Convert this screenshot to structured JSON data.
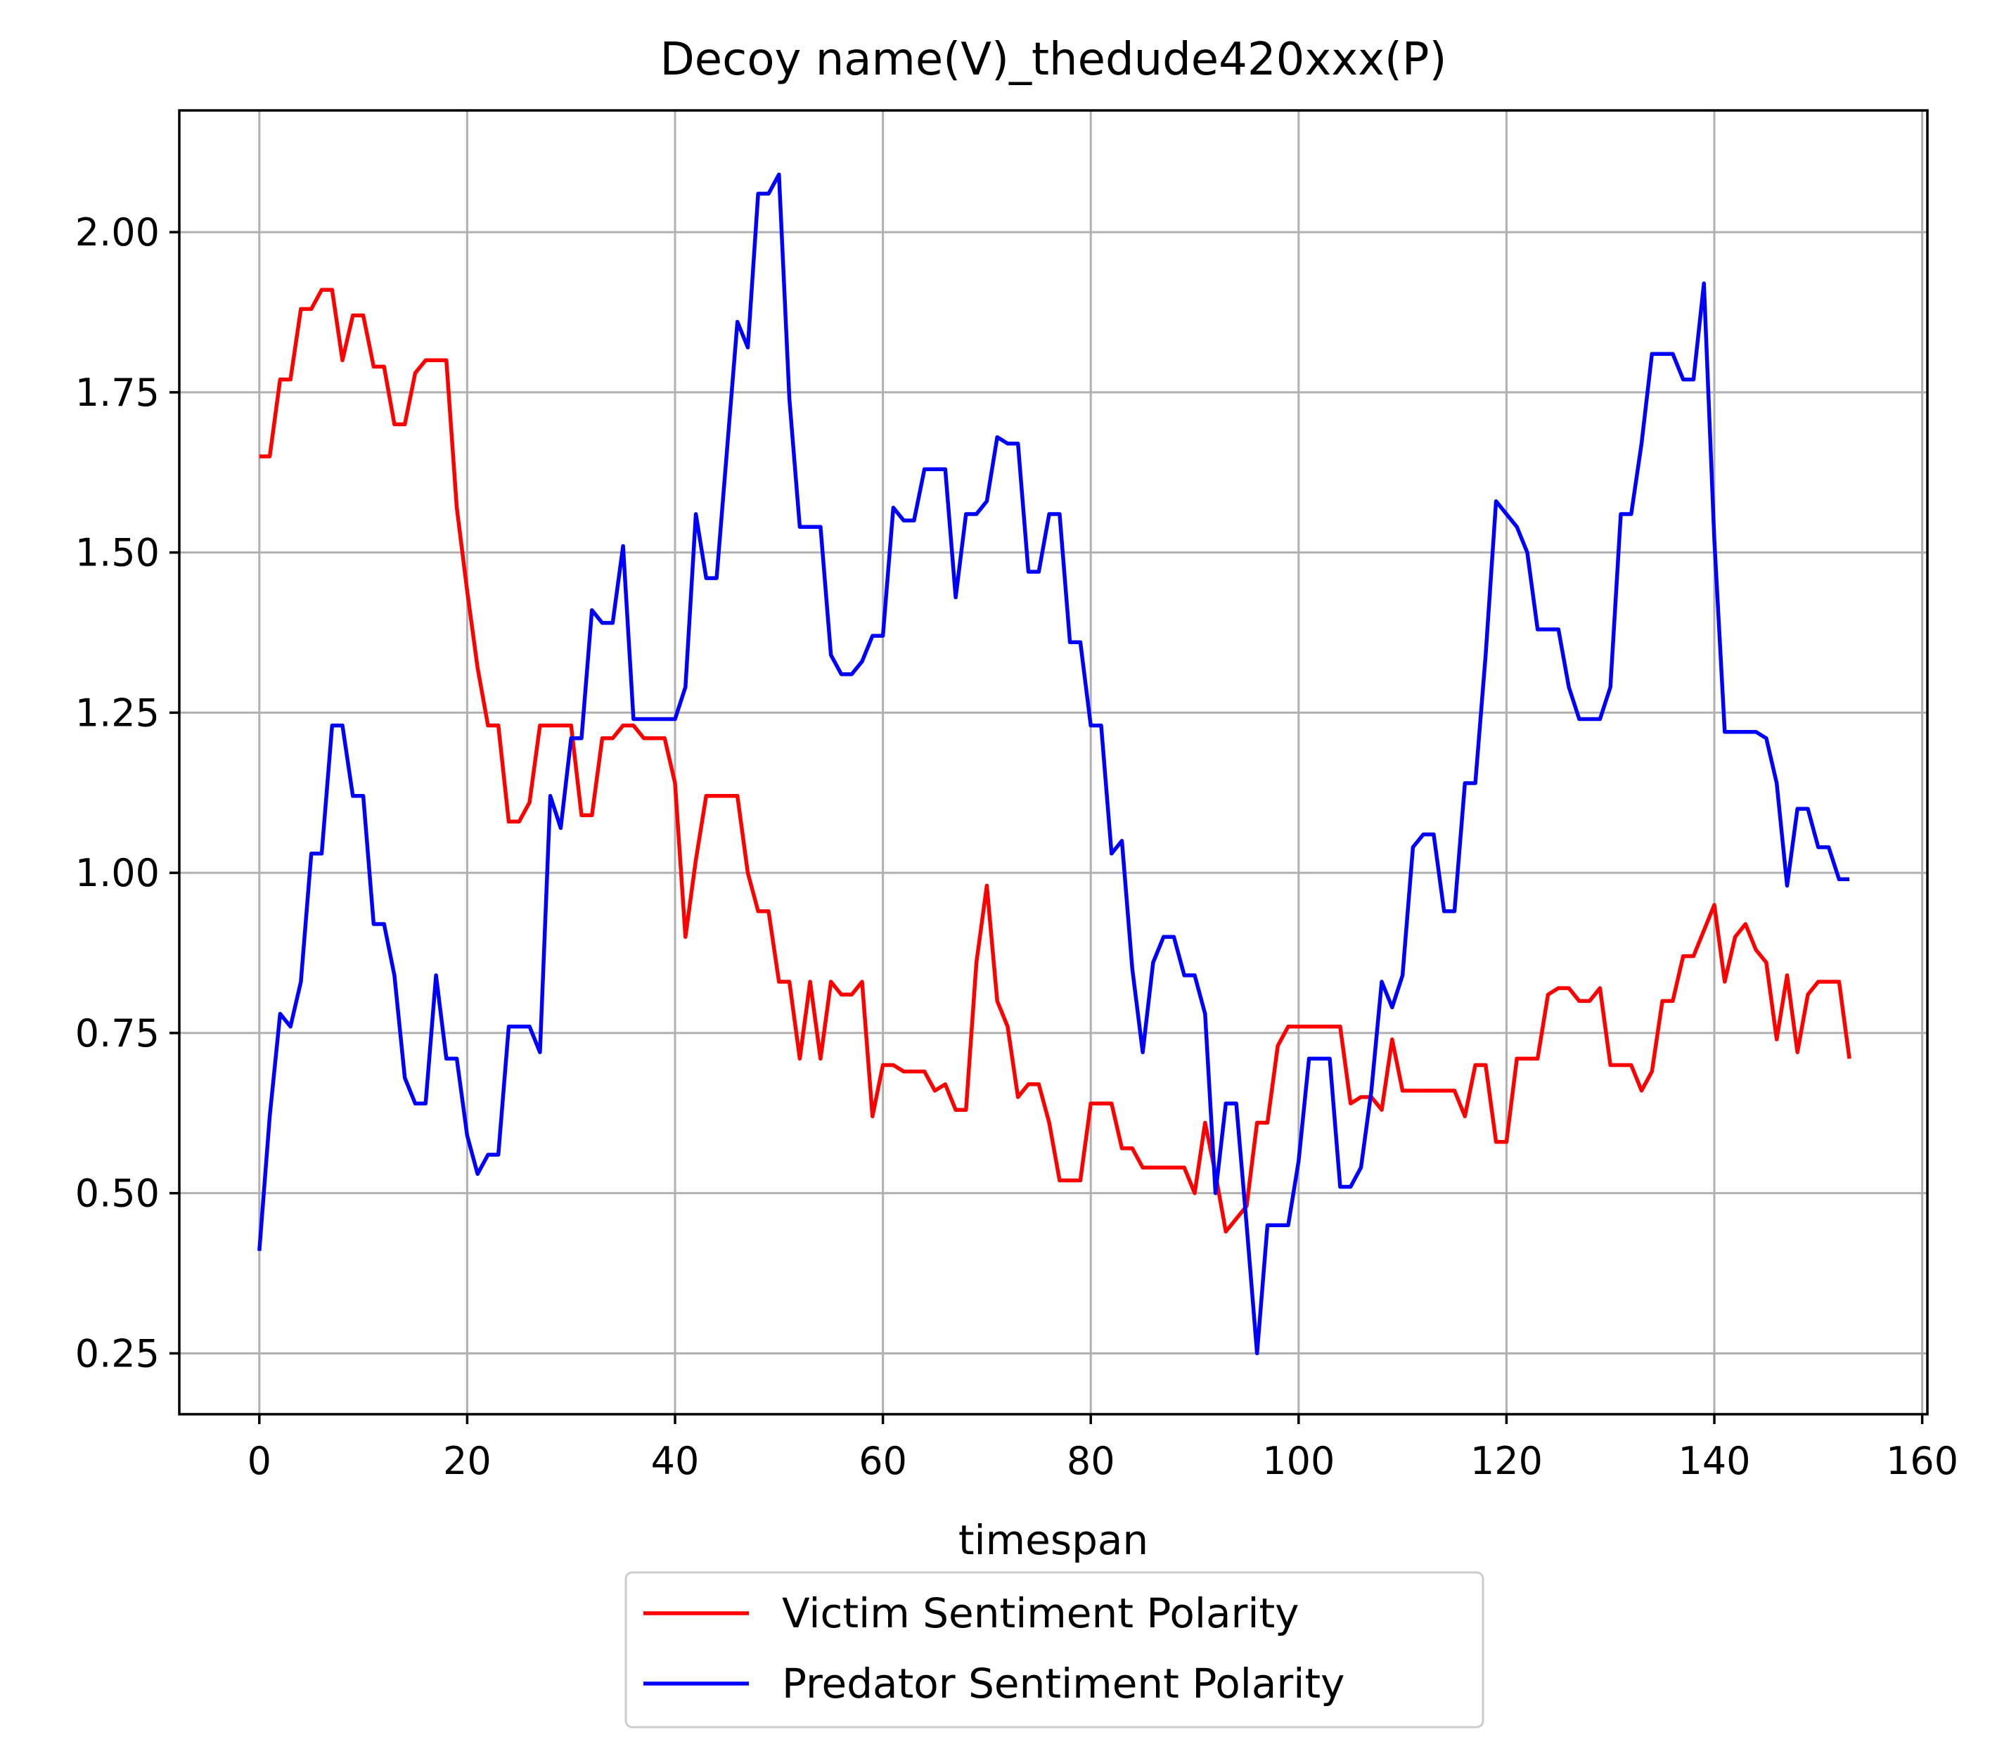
{
  "chart_data": {
    "type": "line",
    "title": "Decoy name(V)_thedude420xxx(P)",
    "xlabel": "timespan",
    "ylabel": "",
    "xlim": [
      -7.7,
      160.5
    ],
    "ylim": [
      0.155,
      2.19
    ],
    "xticks": [
      0,
      20,
      40,
      60,
      80,
      100,
      120,
      140,
      160
    ],
    "xtick_labels": [
      "0",
      "20",
      "40",
      "60",
      "80",
      "100",
      "120",
      "140",
      "160"
    ],
    "yticks": [
      0.25,
      0.5,
      0.75,
      1.0,
      1.25,
      1.5,
      1.75,
      2.0
    ],
    "ytick_labels": [
      "0.25",
      "0.50",
      "0.75",
      "1.00",
      "1.25",
      "1.50",
      "1.75",
      "2.00"
    ],
    "grid": true,
    "legend_position": "below",
    "series": [
      {
        "name": "Victim Sentiment Polarity",
        "color": "#ff0000",
        "x": [
          0,
          1,
          2,
          3,
          4,
          5,
          6,
          7,
          8,
          9,
          10,
          11,
          12,
          13,
          14,
          15,
          16,
          17,
          18,
          19,
          20,
          21,
          22,
          23,
          24,
          25,
          26,
          27,
          28,
          29,
          30,
          31,
          32,
          33,
          34,
          35,
          36,
          37,
          38,
          39,
          40,
          41,
          42,
          43,
          44,
          45,
          46,
          47,
          48,
          49,
          50,
          51,
          52,
          53,
          54,
          55,
          56,
          57,
          58,
          59,
          60,
          61,
          62,
          63,
          64,
          65,
          66,
          67,
          68,
          69,
          70,
          71,
          72,
          73,
          74,
          75,
          76,
          77,
          78,
          79,
          80,
          81,
          82,
          83,
          84,
          85,
          86,
          87,
          88,
          89,
          90,
          91,
          92,
          93,
          94,
          95,
          96,
          97,
          98,
          99,
          100,
          101,
          102,
          103,
          104,
          105,
          106,
          107,
          108,
          109,
          110,
          111,
          112,
          113,
          114,
          115,
          116,
          117,
          118,
          119,
          120,
          121,
          122,
          123,
          124,
          125,
          126,
          127,
          128,
          129,
          130,
          131,
          132,
          133,
          134,
          135,
          136,
          137,
          138,
          139,
          140,
          141,
          142,
          143,
          144,
          145,
          146,
          147,
          148,
          149,
          150,
          151,
          152,
          153
        ],
        "values": [
          1.65,
          1.65,
          1.77,
          1.77,
          1.88,
          1.88,
          1.91,
          1.91,
          1.8,
          1.87,
          1.87,
          1.79,
          1.79,
          1.7,
          1.7,
          1.78,
          1.8,
          1.8,
          1.8,
          1.57,
          1.44,
          1.32,
          1.23,
          1.23,
          1.08,
          1.08,
          1.11,
          1.23,
          1.23,
          1.23,
          1.23,
          1.09,
          1.09,
          1.21,
          1.21,
          1.23,
          1.23,
          1.21,
          1.21,
          1.21,
          1.14,
          0.9,
          1.02,
          1.12,
          1.12,
          1.12,
          1.12,
          1.0,
          0.94,
          0.94,
          0.83,
          0.83,
          0.71,
          0.83,
          0.71,
          0.83,
          0.81,
          0.81,
          0.83,
          0.62,
          0.7,
          0.7,
          0.69,
          0.69,
          0.69,
          0.66,
          0.67,
          0.63,
          0.63,
          0.86,
          0.98,
          0.8,
          0.76,
          0.65,
          0.67,
          0.67,
          0.61,
          0.52,
          0.52,
          0.52,
          0.64,
          0.64,
          0.64,
          0.57,
          0.57,
          0.54,
          0.54,
          0.54,
          0.54,
          0.54,
          0.5,
          0.61,
          0.53,
          0.44,
          0.46,
          0.48,
          0.61,
          0.61,
          0.73,
          0.76,
          0.76,
          0.76,
          0.76,
          0.76,
          0.76,
          0.64,
          0.65,
          0.65,
          0.63,
          0.74,
          0.66,
          0.66,
          0.66,
          0.66,
          0.66,
          0.66,
          0.62,
          0.7,
          0.7,
          0.58,
          0.58,
          0.71,
          0.71,
          0.71,
          0.81,
          0.82,
          0.82,
          0.8,
          0.8,
          0.82,
          0.7,
          0.7,
          0.7,
          0.66,
          0.69,
          0.8,
          0.8,
          0.87,
          0.87,
          0.91,
          0.95,
          0.83,
          0.9,
          0.92,
          0.88,
          0.86,
          0.74,
          0.84,
          0.72,
          0.81,
          0.83,
          0.83,
          0.83,
          0.71
        ]
      },
      {
        "name": "Predator Sentiment Polarity",
        "color": "#0000ff",
        "x": [
          0,
          1,
          2,
          3,
          4,
          5,
          6,
          7,
          8,
          9,
          10,
          11,
          12,
          13,
          14,
          15,
          16,
          17,
          18,
          19,
          20,
          21,
          22,
          23,
          24,
          25,
          26,
          27,
          28,
          29,
          30,
          31,
          32,
          33,
          34,
          35,
          36,
          37,
          38,
          39,
          40,
          41,
          42,
          43,
          44,
          45,
          46,
          47,
          48,
          49,
          50,
          51,
          52,
          53,
          54,
          55,
          56,
          57,
          58,
          59,
          60,
          61,
          62,
          63,
          64,
          65,
          66,
          67,
          68,
          69,
          70,
          71,
          72,
          73,
          74,
          75,
          76,
          77,
          78,
          79,
          80,
          81,
          82,
          83,
          84,
          85,
          86,
          87,
          88,
          89,
          90,
          91,
          92,
          93,
          94,
          95,
          96,
          97,
          98,
          99,
          100,
          101,
          102,
          103,
          104,
          105,
          106,
          107,
          108,
          109,
          110,
          111,
          112,
          113,
          114,
          115,
          116,
          117,
          118,
          119,
          120,
          121,
          122,
          123,
          124,
          125,
          126,
          127,
          128,
          129,
          130,
          131,
          132,
          133,
          134,
          135,
          136,
          137,
          138,
          139,
          140,
          141,
          142,
          143,
          144,
          145,
          146,
          147,
          148,
          149,
          150,
          151,
          152,
          153
        ],
        "values": [
          0.41,
          0.62,
          0.78,
          0.76,
          0.83,
          1.03,
          1.03,
          1.23,
          1.23,
          1.12,
          1.12,
          0.92,
          0.92,
          0.84,
          0.68,
          0.64,
          0.64,
          0.84,
          0.71,
          0.71,
          0.59,
          0.53,
          0.56,
          0.56,
          0.76,
          0.76,
          0.76,
          0.72,
          1.12,
          1.07,
          1.21,
          1.21,
          1.41,
          1.39,
          1.39,
          1.51,
          1.24,
          1.24,
          1.24,
          1.24,
          1.24,
          1.29,
          1.56,
          1.46,
          1.46,
          1.66,
          1.86,
          1.82,
          2.06,
          2.06,
          2.09,
          1.74,
          1.54,
          1.54,
          1.54,
          1.34,
          1.31,
          1.31,
          1.33,
          1.37,
          1.37,
          1.57,
          1.55,
          1.55,
          1.63,
          1.63,
          1.63,
          1.43,
          1.56,
          1.56,
          1.58,
          1.68,
          1.67,
          1.67,
          1.47,
          1.47,
          1.56,
          1.56,
          1.36,
          1.36,
          1.23,
          1.23,
          1.03,
          1.05,
          0.85,
          0.72,
          0.86,
          0.9,
          0.9,
          0.84,
          0.84,
          0.78,
          0.5,
          0.64,
          0.64,
          0.45,
          0.25,
          0.45,
          0.45,
          0.45,
          0.55,
          0.71,
          0.71,
          0.71,
          0.51,
          0.51,
          0.54,
          0.66,
          0.83,
          0.79,
          0.84,
          1.04,
          1.06,
          1.06,
          0.94,
          0.94,
          1.14,
          1.14,
          1.34,
          1.58,
          1.56,
          1.54,
          1.5,
          1.38,
          1.38,
          1.38,
          1.29,
          1.24,
          1.24,
          1.24,
          1.29,
          1.56,
          1.56,
          1.67,
          1.81,
          1.81,
          1.81,
          1.77,
          1.77,
          1.92,
          1.52,
          1.22,
          1.22,
          1.22,
          1.22,
          1.21,
          1.14,
          0.98,
          1.1,
          1.1,
          1.04,
          1.04,
          0.99,
          0.99
        ]
      }
    ]
  }
}
